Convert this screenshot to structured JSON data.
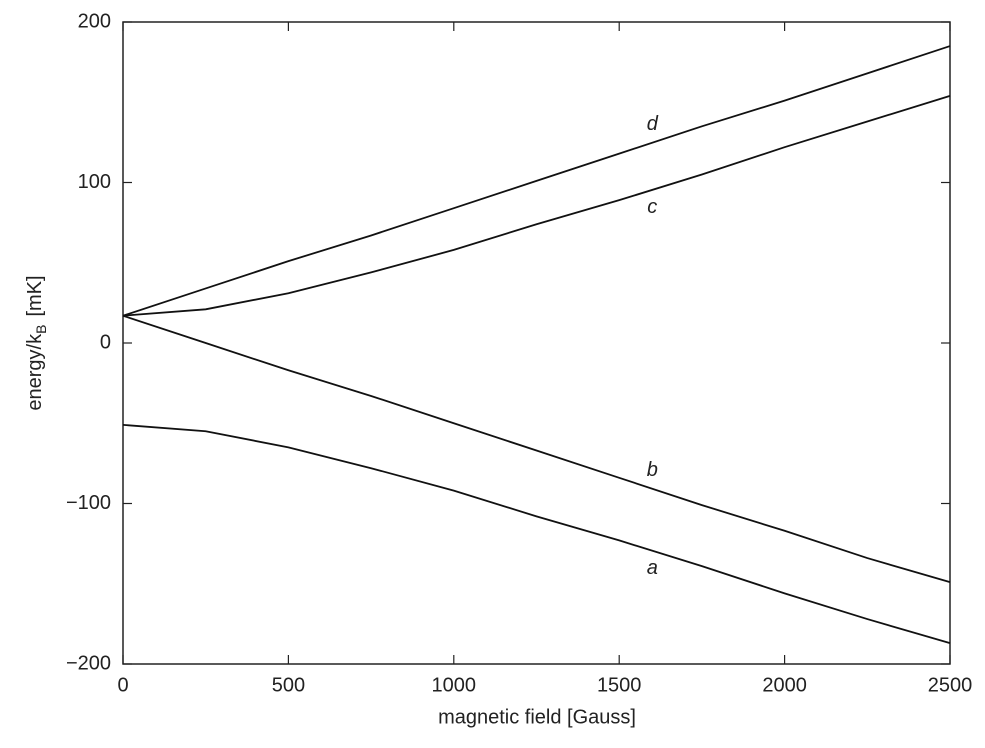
{
  "chart_data": {
    "type": "line",
    "xlabel": "magnetic field [Gauss]",
    "ylabel": [
      "energy/k",
      "B",
      "[mK]"
    ],
    "x": [
      0,
      250,
      500,
      750,
      1000,
      1250,
      1500,
      1750,
      2000,
      2250,
      2500
    ],
    "series": [
      {
        "name": "a",
        "color": "#111111",
        "values": [
          -51,
          -55,
          -65,
          -78,
          -92,
          -108,
          -123,
          -139,
          -156,
          -172,
          -187
        ]
      },
      {
        "name": "b",
        "color": "#111111",
        "values": [
          17,
          0,
          -17,
          -33,
          -50,
          -67,
          -84,
          -101,
          -117,
          -134,
          -149
        ]
      },
      {
        "name": "c",
        "color": "#111111",
        "values": [
          17,
          21,
          31,
          44,
          58,
          74,
          89,
          105,
          122,
          138,
          154
        ]
      },
      {
        "name": "d",
        "color": "#111111",
        "values": [
          17,
          34,
          51,
          67,
          84,
          101,
          118,
          135,
          151,
          168,
          185
        ]
      }
    ],
    "xlim": [
      0,
      2500
    ],
    "xticks": [
      0,
      500,
      1000,
      1500,
      2000,
      2500
    ],
    "ylim": [
      -200,
      200
    ],
    "yticks": [
      {
        "value": -200,
        "label": "−200"
      },
      {
        "value": -100,
        "label": "−100"
      },
      0,
      100,
      200
    ],
    "grid": false
  }
}
